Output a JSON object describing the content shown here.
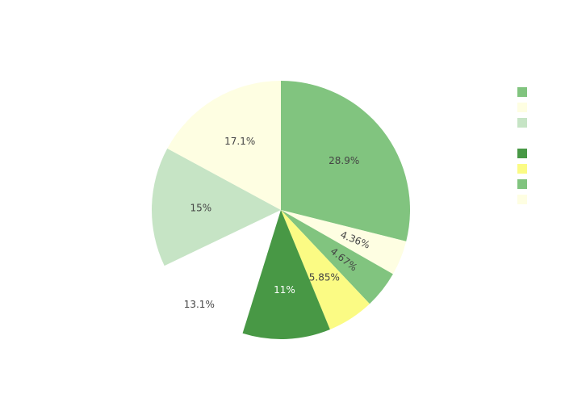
{
  "chart_data": {
    "type": "pie",
    "direction": "clockwise",
    "start_angle_deg": 90,
    "slices": [
      {
        "label": "",
        "value": 28.9,
        "text": "28.9%",
        "color": "#81c47f",
        "text_color": "#444444",
        "pulled": false
      },
      {
        "label": "",
        "value": 4.36,
        "text": "4.36%",
        "color": "#fefee2",
        "text_color": "#444444",
        "pulled": false,
        "rotate_label": true
      },
      {
        "label": "",
        "value": 4.67,
        "text": "4.67%",
        "color": "#81c47f",
        "text_color": "#444444",
        "pulled": false,
        "rotate_label": true
      },
      {
        "label": "",
        "value": 5.85,
        "text": "5.85%",
        "color": "#fbfb84",
        "text_color": "#444444",
        "pulled": false
      },
      {
        "label": "",
        "value": 11.0,
        "text": "11%",
        "color": "#489845",
        "text_color": "#ffffff",
        "pulled": false
      },
      {
        "label": "",
        "value": 13.1,
        "text": "13.1%",
        "color": "#ffffff",
        "text_color": "#444444",
        "pulled": true
      },
      {
        "label": "",
        "value": 15.0,
        "text": "15%",
        "color": "#c6e4c5",
        "text_color": "#444444",
        "pulled": false
      },
      {
        "label": "",
        "value": 17.1,
        "text": "17.1%",
        "color": "#fefee2",
        "text_color": "#444444",
        "pulled": false
      }
    ],
    "legend": {
      "placement": "right",
      "items": [
        {
          "label": "",
          "color": "#81c47f"
        },
        {
          "label": "",
          "color": "#fefee2"
        },
        {
          "label": "",
          "color": "#c6e4c5"
        },
        {
          "label": "",
          "color": "#ffffff"
        },
        {
          "label": "",
          "color": "#489845"
        },
        {
          "label": "",
          "color": "#fbfb84"
        },
        {
          "label": "",
          "color": "#81c47f"
        },
        {
          "label": "",
          "color": "#fefee2"
        }
      ]
    }
  }
}
